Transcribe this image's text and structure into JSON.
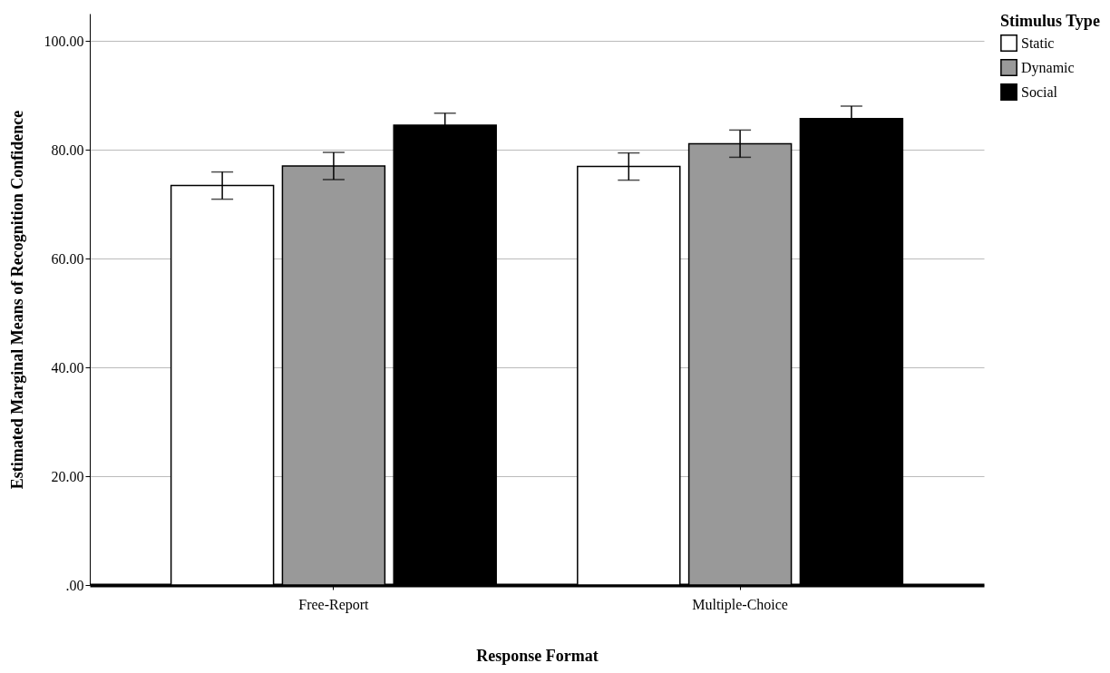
{
  "chart_data": {
    "type": "bar",
    "xlabel": "Response Format",
    "ylabel": "Estimated Marginal Means of Recognition Confidence",
    "legend_title": "Stimulus Type",
    "categories": [
      "Free-Report",
      "Multiple-Choice"
    ],
    "series": [
      {
        "name": "Static",
        "color": "#ffffff",
        "values": [
          73.4,
          76.9
        ],
        "errors": [
          2.5,
          2.5
        ]
      },
      {
        "name": "Dynamic",
        "color": "#999999",
        "values": [
          77.0,
          81.1
        ],
        "errors": [
          2.5,
          2.5
        ]
      },
      {
        "name": "Social",
        "color": "#000000",
        "values": [
          84.5,
          85.7
        ],
        "errors": [
          2.2,
          2.3
        ]
      }
    ],
    "ylim": [
      0,
      105
    ],
    "yticks": [
      {
        "value": 0,
        "label": ".00"
      },
      {
        "value": 20,
        "label": "20.00"
      },
      {
        "value": 40,
        "label": "40.00"
      },
      {
        "value": 60,
        "label": "60.00"
      },
      {
        "value": 80,
        "label": "80.00"
      },
      {
        "value": 100,
        "label": "100.00"
      }
    ],
    "grid": "y",
    "legend": "top right"
  }
}
